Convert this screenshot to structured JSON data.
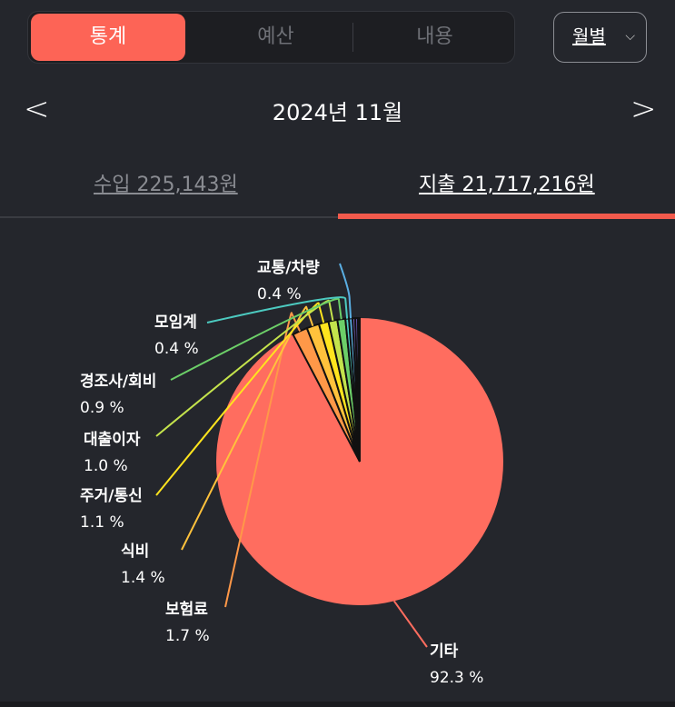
{
  "tabs": {
    "items": [
      "통계",
      "예산",
      "내용"
    ],
    "active": 0
  },
  "period_select": {
    "value": "월별"
  },
  "month_nav": {
    "prev_icon": "chevron-left-icon",
    "title": "2024년 11월",
    "next_icon": "chevron-right-icon"
  },
  "summary_tabs": {
    "income": "수입 225,143원",
    "expense": "지출 21,717,216원",
    "active": "expense"
  },
  "colors": {
    "accent": "#fd6456",
    "background": "#24262c"
  },
  "chart_data": {
    "type": "pie",
    "slices": [
      {
        "label": "기타",
        "value": 92.3,
        "text": "92.3 %",
        "color": "#ff6d5f"
      },
      {
        "label": "보험료",
        "value": 1.7,
        "text": "1.7 %",
        "color": "#ff9848"
      },
      {
        "label": "식비",
        "value": 1.4,
        "text": "1.4 %",
        "color": "#ffc23c"
      },
      {
        "label": "주거/통신",
        "value": 1.1,
        "text": "1.1 %",
        "color": "#ffe41e"
      },
      {
        "label": "대출이자",
        "value": 1.0,
        "text": "1.0 %",
        "color": "#c4e34c"
      },
      {
        "label": "경조사/회비",
        "value": 0.9,
        "text": "0.9 %",
        "color": "#6ccf68"
      },
      {
        "label": "모임계",
        "value": 0.4,
        "text": "0.4 %",
        "color": "#4ccac0"
      },
      {
        "label": "교통/차량",
        "value": 0.4,
        "text": "0.4 %",
        "color": "#5aaee2"
      },
      {
        "label": "",
        "value": 0.3,
        "text": "",
        "color": "#8a6cd8"
      },
      {
        "label": "",
        "value": 0.3,
        "text": "",
        "color": "#6a5ac0"
      },
      {
        "label": "",
        "value": 0.2,
        "text": "",
        "color": "#4a4aa0"
      }
    ]
  }
}
